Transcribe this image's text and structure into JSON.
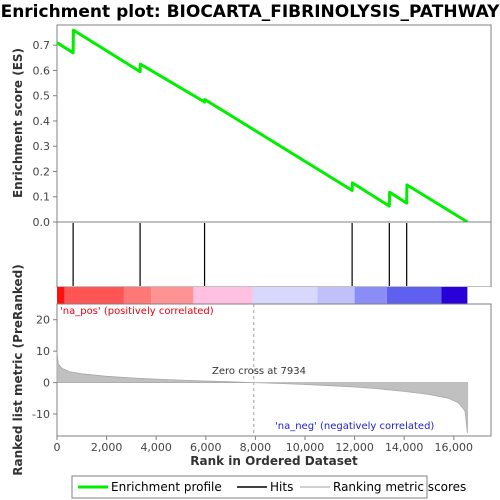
{
  "chart_data": {
    "type": "line",
    "title": "Enrichment plot: BIOCARTA_FIBRINOLYSIS_PATHWAY",
    "xlabel": "Rank in Ordered Dataset",
    "xlim": [
      0,
      17500
    ],
    "x_ticks": [
      0,
      2000,
      4000,
      6000,
      8000,
      10000,
      12000,
      14000,
      16000
    ],
    "x_tick_labels": [
      "0",
      "2,000",
      "4,000",
      "6,000",
      "8,000",
      "10,000",
      "12,000",
      "14,000",
      "16,000"
    ],
    "top_panel": {
      "ylabel": "Enrichment score (ES)",
      "ylim": [
        0,
        0.78
      ],
      "y_ticks": [
        0.0,
        0.1,
        0.2,
        0.3,
        0.4,
        0.5,
        0.6,
        0.7
      ],
      "y_tick_labels": [
        "0.0",
        "0.1",
        "0.2",
        "0.3",
        "0.4",
        "0.5",
        "0.6",
        "0.7"
      ],
      "series": [
        {
          "name": "Enrichment profile",
          "color": "#00ee00",
          "x": [
            0,
            650,
            660,
            3350,
            3360,
            5950,
            5960,
            11900,
            11910,
            13400,
            13410,
            14100,
            14110,
            16550
          ],
          "y": [
            0.71,
            0.67,
            0.76,
            0.595,
            0.625,
            0.475,
            0.485,
            0.125,
            0.155,
            0.063,
            0.118,
            0.075,
            0.147,
            0.0
          ]
        }
      ]
    },
    "hits": {
      "name": "Hits",
      "color": "#000000",
      "positions": [
        650,
        3350,
        5950,
        11900,
        13400,
        14100
      ]
    },
    "color_bar": {
      "range": [
        0,
        16550
      ],
      "segments": [
        {
          "end": 300,
          "color": "#ff1010"
        },
        {
          "end": 2700,
          "color": "#ff5555"
        },
        {
          "end": 3800,
          "color": "#ff7878"
        },
        {
          "end": 5500,
          "color": "#ff9393"
        },
        {
          "end": 7900,
          "color": "#ffc0e2"
        },
        {
          "end": 10500,
          "color": "#d8d8fc"
        },
        {
          "end": 12000,
          "color": "#c0c0fa"
        },
        {
          "end": 13300,
          "color": "#8c8cf6"
        },
        {
          "end": 15500,
          "color": "#6060ee"
        },
        {
          "end": 16550,
          "color": "#2a00d8"
        }
      ]
    },
    "bottom_panel": {
      "ylabel": "Ranked list metric (PreRanked)",
      "ylim": [
        -17,
        25
      ],
      "y_ticks": [
        -10,
        0,
        10,
        20
      ],
      "y_tick_labels": [
        "-10",
        "0",
        "10",
        "20"
      ],
      "series": [
        {
          "name": "Ranking metric scores",
          "color": "#c0c0c0",
          "x": [
            0,
            50,
            200,
            500,
            1000,
            2000,
            3000,
            4000,
            5000,
            6000,
            7000,
            7934,
            9000,
            10000,
            11000,
            12000,
            13000,
            14000,
            15000,
            15800,
            16200,
            16450,
            16550
          ],
          "y": [
            10,
            6,
            4.5,
            3.5,
            2.8,
            2.0,
            1.5,
            1.1,
            0.8,
            0.5,
            0.25,
            0,
            -0.3,
            -0.6,
            -1.0,
            -1.4,
            -2.0,
            -2.8,
            -3.8,
            -5.0,
            -6.5,
            -9.0,
            -16.0
          ]
        }
      ],
      "annotations": {
        "positive": "'na_pos' (positively correlated)",
        "negative": "'na_neg' (negatively correlated)",
        "zero_cross": "Zero cross at 7934"
      },
      "zero_cross_x": 7934
    },
    "legend": [
      "Enrichment profile",
      "Hits",
      "Ranking metric scores"
    ],
    "legend_position": "bottom"
  }
}
